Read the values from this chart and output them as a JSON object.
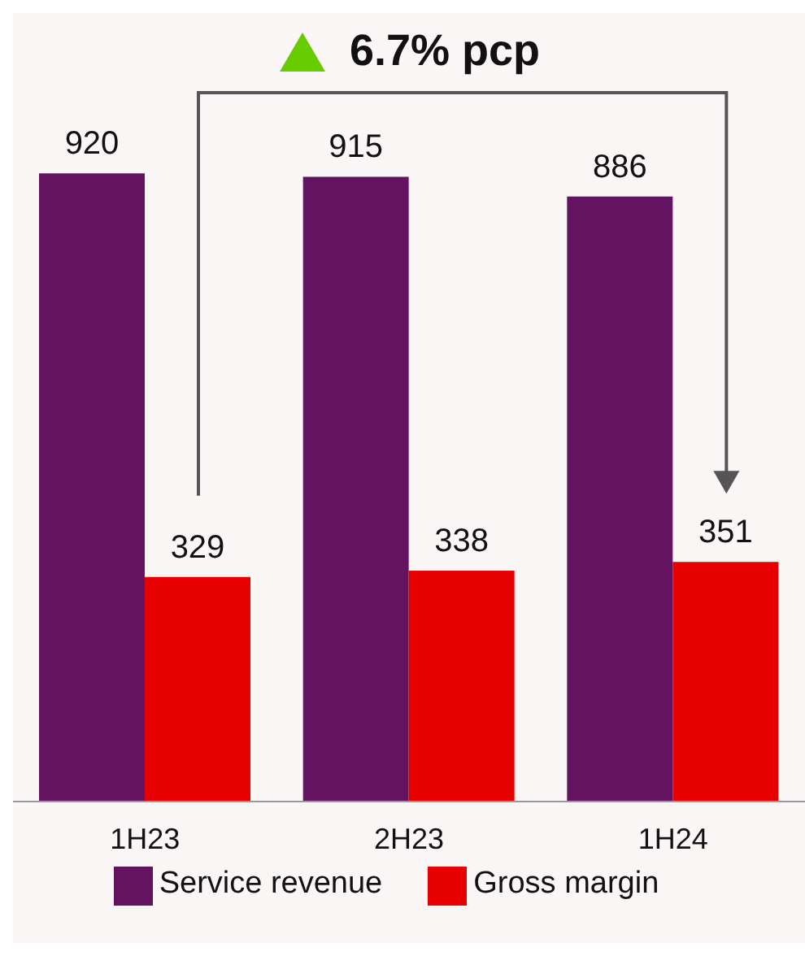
{
  "chart_data": {
    "type": "bar",
    "categories": [
      "1H23",
      "2H23",
      "1H24"
    ],
    "series": [
      {
        "name": "Service revenue",
        "color": "#63135f",
        "values": [
          920,
          915,
          886
        ]
      },
      {
        "name": "Gross margin",
        "color": "#e60000",
        "values": [
          329,
          338,
          351
        ]
      }
    ],
    "data_labels": true,
    "legend": "bottom",
    "annotations": [
      "6.7% pcp"
    ]
  }
}
